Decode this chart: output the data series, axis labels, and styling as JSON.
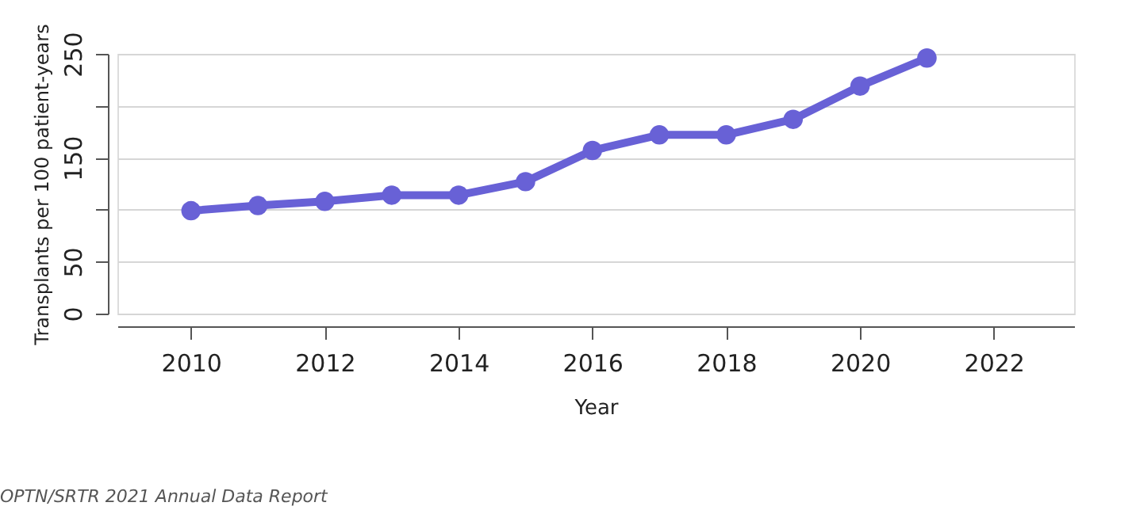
{
  "chart_data": {
    "type": "line",
    "xlabel": "Year",
    "ylabel": "Transplants per 100 patient-years",
    "x": [
      2010,
      2011,
      2012,
      2013,
      2014,
      2015,
      2016,
      2017,
      2018,
      2019,
      2020,
      2021
    ],
    "series": [
      {
        "color": "#6861d6",
        "values": [
          99,
          104,
          108,
          114,
          114,
          127,
          157,
          172,
          172,
          187,
          219,
          246
        ]
      }
    ],
    "xlim": [
      2008.9,
      2023.2
    ],
    "xticks": [
      2010,
      2012,
      2014,
      2016,
      2018,
      2020,
      2022
    ],
    "ylim": [
      0,
      250
    ],
    "yticks": [
      0,
      50,
      {
        "value": 100,
        "label": null
      },
      150,
      {
        "value": 200,
        "label": null
      },
      250
    ],
    "grid": "y",
    "marker": "circle",
    "line_style": "solid",
    "annotations": [
      "OPTN/SRTR 2021 Annual Data Report"
    ]
  }
}
